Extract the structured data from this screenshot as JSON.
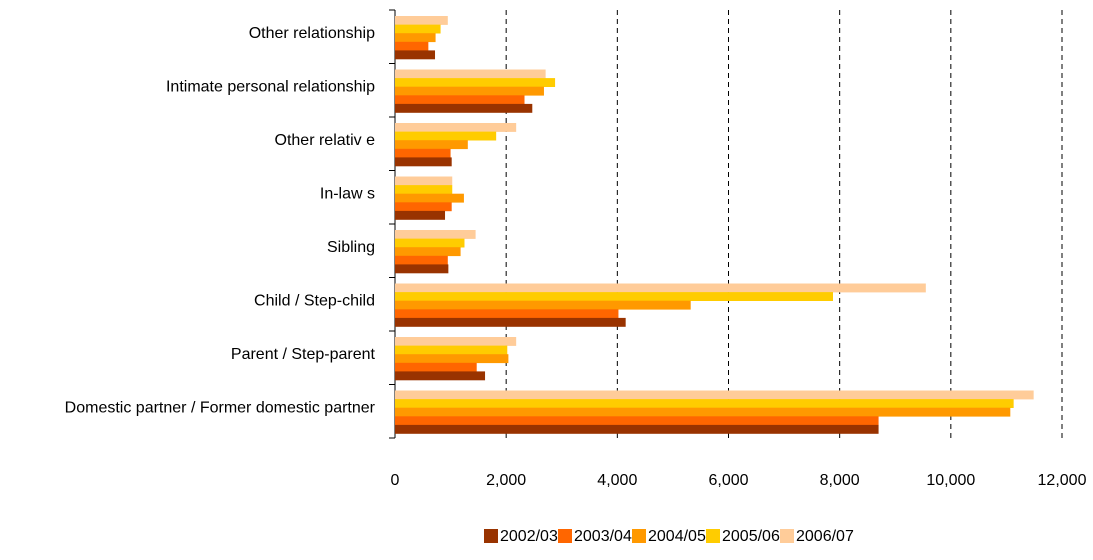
{
  "chart_data": {
    "type": "bar",
    "orientation": "horizontal",
    "categories": [
      "Other relationship",
      "Intimate personal relationship",
      "Other relativ e",
      "In-law s",
      "Sibling",
      "Child / Step-child",
      "Parent / Step-parent",
      "Domestic partner / Former domestic partner"
    ],
    "series": [
      {
        "name": "2002/03",
        "color": "#993300",
        "values": [
          720,
          2470,
          1020,
          900,
          960,
          4150,
          1620,
          8700
        ]
      },
      {
        "name": "2003/04",
        "color": "#FF6600",
        "values": [
          600,
          2330,
          1000,
          1020,
          950,
          4020,
          1470,
          8700
        ]
      },
      {
        "name": "2004/05",
        "color": "#FF9900",
        "values": [
          730,
          2680,
          1310,
          1240,
          1180,
          5320,
          2040,
          11070
        ]
      },
      {
        "name": "2005/06",
        "color": "#FFCC00",
        "values": [
          820,
          2880,
          1820,
          1030,
          1250,
          7880,
          2020,
          11130
        ]
      },
      {
        "name": "2006/07",
        "color": "#FFCC99",
        "values": [
          950,
          2710,
          2180,
          1030,
          1450,
          9550,
          2180,
          11490
        ]
      }
    ],
    "x_ticks": [
      "0",
      "2,000",
      "4,000",
      "6,000",
      "8,000",
      "10,000",
      "12,000"
    ],
    "xlim": [
      0,
      12000
    ],
    "grid": "vertical dashed",
    "legend_position": "bottom-right"
  }
}
